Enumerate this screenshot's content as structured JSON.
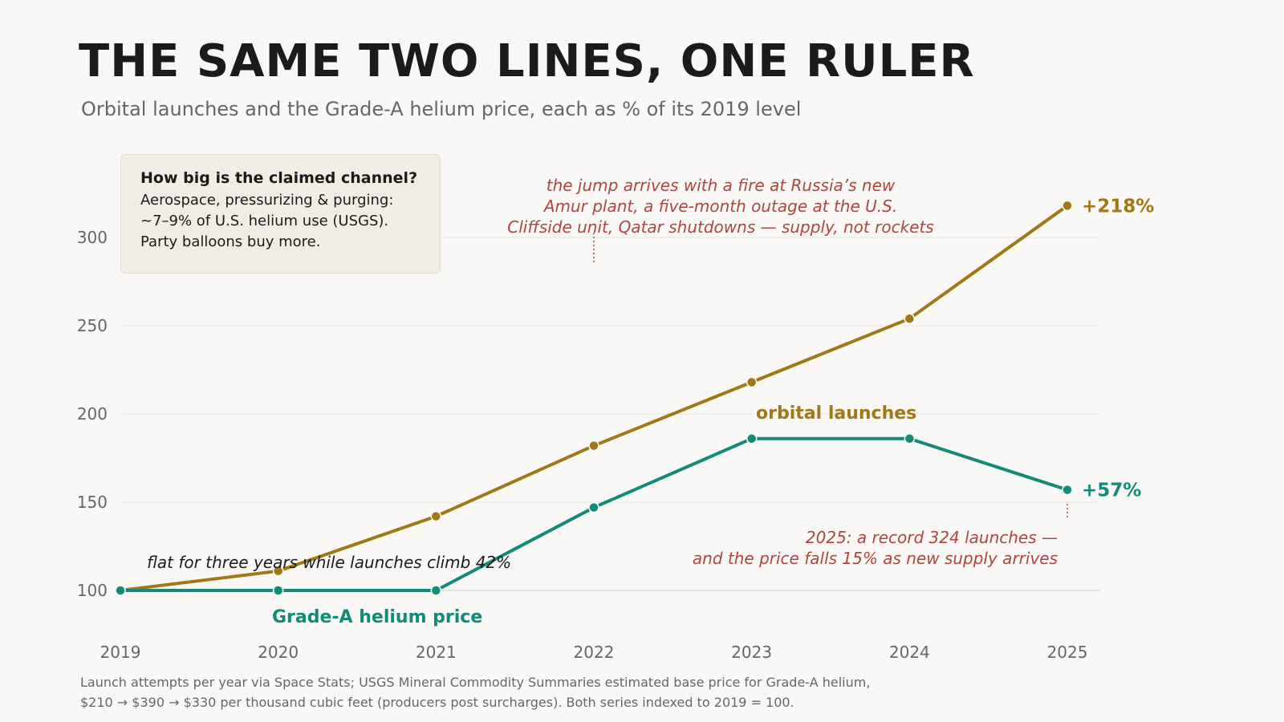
{
  "header": {
    "title": "THE SAME TWO LINES, ONE RULER",
    "subtitle": "Orbital launches and the Grade-A helium price, each as % of its 2019 level"
  },
  "callout": {
    "title": "How big is the claimed channel?",
    "lines": [
      "Aerospace, pressurizing & purging:",
      "~7–9% of U.S. helium use (USGS).",
      "Party balloons buy more."
    ]
  },
  "annotations": {
    "jump": [
      "the jump arrives with a fire at Russia’s new",
      "Amur plant, a five-month outage at the U.S.",
      "Cliffside unit, Qatar shutdowns — supply, not rockets"
    ],
    "flat": "flat for three years while launches climb 42%",
    "record": [
      "2025: a record 324 launches —",
      "and the price falls 15% as new supply arrives"
    ]
  },
  "footnote": {
    "lines": [
      "Launch attempts per year via Space Stats; USGS Mineral Commodity Summaries estimated base price for Grade-A helium,",
      "$210 → $390 → $330 per thousand cubic feet (producers post surcharges). Both series indexed to 2019 = 100."
    ]
  },
  "colors": {
    "launches": "#a07818",
    "helium": "#138a78",
    "annotation": "#b0443e",
    "grid": "#e6e4e0",
    "axis_text": "#666666"
  },
  "chart_data": {
    "type": "line",
    "x": [
      2019,
      2020,
      2021,
      2022,
      2023,
      2024,
      2025
    ],
    "x_tick_labels": [
      "2019",
      "2020",
      "2021",
      "2022",
      "2023",
      "2024",
      "2025"
    ],
    "y_ticks": [
      100,
      150,
      200,
      250,
      300
    ],
    "y_tick_labels": [
      "100",
      "150",
      "200",
      "250",
      "300"
    ],
    "ylim": [
      80,
      350
    ],
    "xlim": [
      2019,
      2025
    ],
    "grid": "horizontal",
    "series": [
      {
        "key": "launches",
        "name": "orbital launches",
        "values": [
          100,
          111,
          142,
          182,
          218,
          254,
          318
        ],
        "end_label": "+218%"
      },
      {
        "key": "helium",
        "name": "Grade-A helium price",
        "values": [
          100,
          100,
          100,
          147,
          186,
          186,
          157
        ],
        "end_label": "+57%"
      }
    ]
  }
}
